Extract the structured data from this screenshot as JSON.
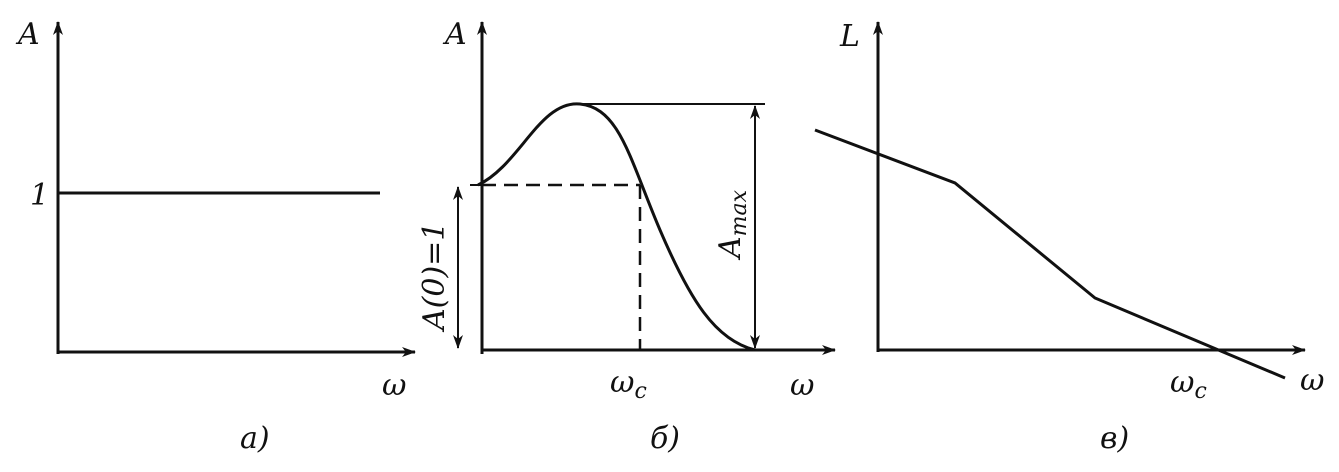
{
  "panels": [
    {
      "axis_y": "A",
      "level": "1",
      "axis_x": "ω",
      "caption": "а)"
    },
    {
      "axis_y": "A",
      "level": "A(0)=1",
      "peak": {
        "base": "A",
        "sub": "max"
      },
      "cutoff": {
        "base": "ω",
        "sub": "c"
      },
      "axis_x": "ω",
      "caption": "б)"
    },
    {
      "axis_y": "L",
      "cutoff": {
        "base": "ω",
        "sub": "c"
      },
      "axis_x": "ω",
      "caption": "в)"
    }
  ]
}
